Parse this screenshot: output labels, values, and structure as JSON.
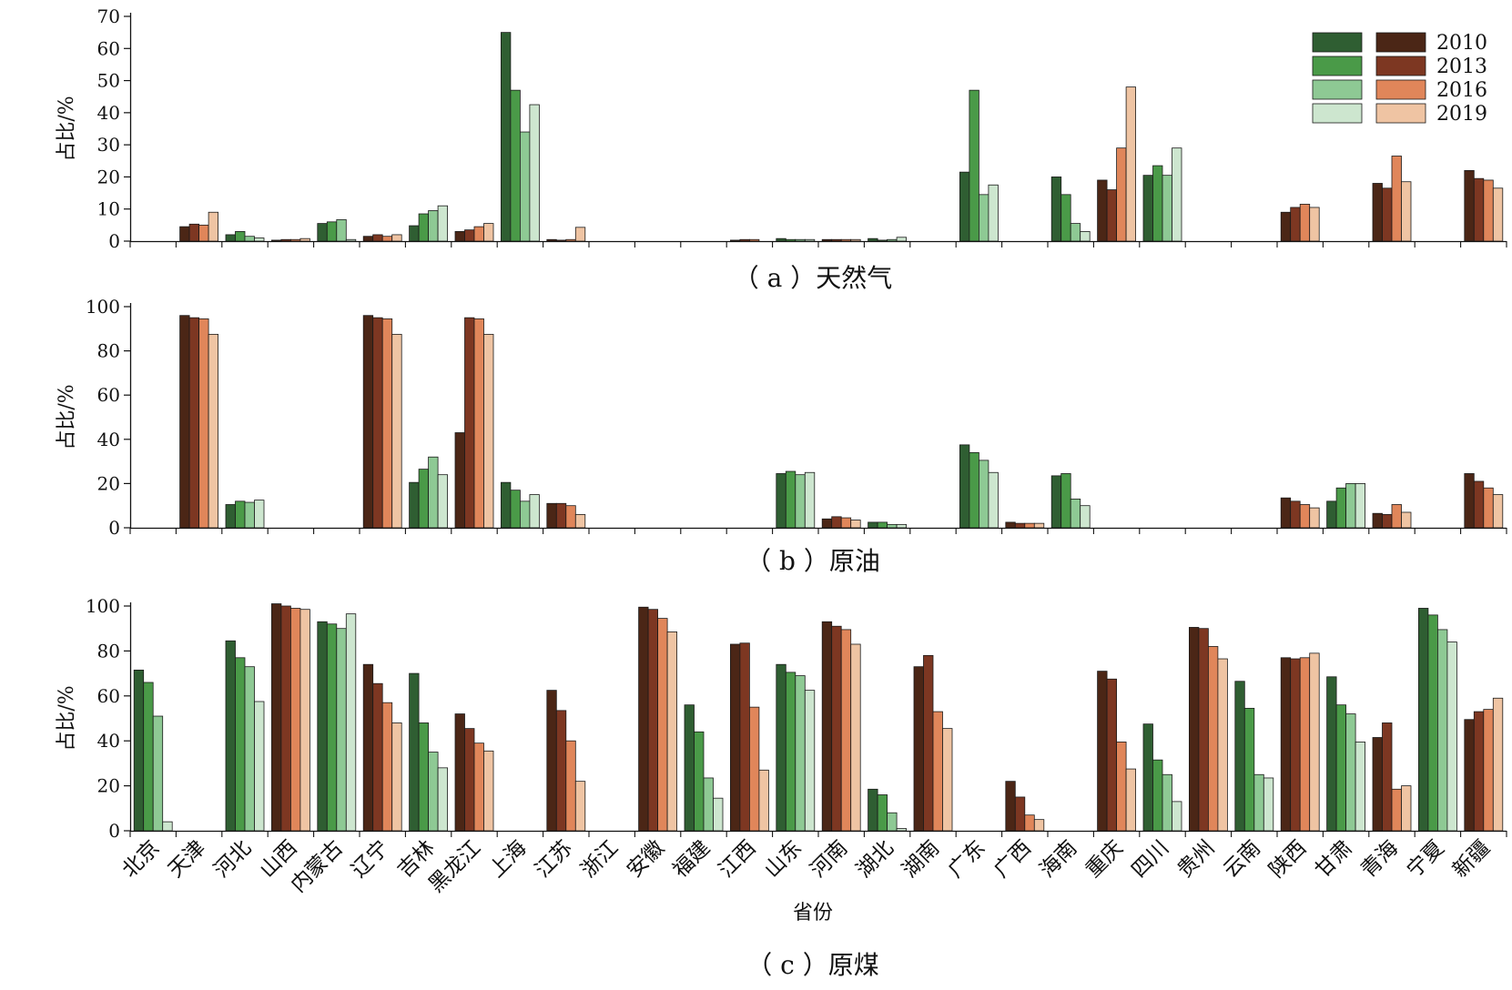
{
  "provinces": [
    "北京",
    "天津",
    "河北",
    "山西",
    "内蒙古",
    "辽宁",
    "吉林",
    "黑龙江",
    "上海",
    "江苏",
    "浙江",
    "安徽",
    "福建",
    "江西",
    "山东",
    "河南",
    "湖北",
    "湖南",
    "广东",
    "广西",
    "海南",
    "重庆",
    "四川",
    "贵州",
    "云南",
    "陕西",
    "甘肃",
    "青海",
    "宁夏",
    "新疆"
  ],
  "xlabel": "省份",
  "legend": {
    "years": [
      "2010",
      "2013",
      "2016",
      "2019"
    ],
    "green": [
      "#2f5e32",
      "#4a9a48",
      "#8ec994",
      "#cde6cf"
    ],
    "brown": [
      "#4b2616",
      "#7d3722",
      "#e0865a",
      "#efc4a3"
    ]
  },
  "chart_data": [
    {
      "type": "bar",
      "caption": "（ a ）天然气",
      "ylabel": "占比/%",
      "ylim": [
        0,
        70
      ],
      "yticks": [
        0,
        10,
        20,
        30,
        40,
        50,
        60,
        70
      ],
      "categories": [
        "北京",
        "天津",
        "河北",
        "山西",
        "内蒙古",
        "辽宁",
        "吉林",
        "黑龙江",
        "上海",
        "江苏",
        "浙江",
        "安徽",
        "福建",
        "江西",
        "山东",
        "河南",
        "湖北",
        "湖南",
        "广东",
        "广西",
        "海南",
        "重庆",
        "四川",
        "贵州",
        "云南",
        "陕西",
        "甘肃",
        "青海",
        "宁夏",
        "新疆"
      ],
      "palette": [
        "b",
        "b",
        "g",
        "b",
        "g",
        "b",
        "g",
        "b",
        "g",
        "b",
        "g",
        "b",
        "g",
        "b",
        "g",
        "b",
        "g",
        "b",
        "g",
        "b",
        "g",
        "b",
        "g",
        "b",
        "g",
        "b",
        "g",
        "b",
        "g",
        "b"
      ],
      "series": [
        {
          "name": "2010",
          "values": [
            0,
            4.5,
            2,
            0.3,
            5.5,
            1.5,
            4.8,
            3,
            65,
            0.5,
            0,
            0,
            0,
            0.3,
            0.8,
            0.5,
            0.8,
            0,
            21.5,
            0,
            20,
            19,
            20.5,
            0,
            0,
            9,
            0,
            18,
            0,
            22
          ]
        },
        {
          "name": "2013",
          "values": [
            0,
            5.3,
            3,
            0.5,
            6,
            2,
            8.5,
            3.5,
            47,
            0.3,
            0,
            0,
            0,
            0.5,
            0.5,
            0.5,
            0.3,
            0,
            47,
            0,
            14.5,
            16,
            23.5,
            0,
            0,
            10.5,
            0,
            16.5,
            0,
            19.5
          ]
        },
        {
          "name": "2016",
          "values": [
            0,
            5,
            1.5,
            0.5,
            6.7,
            1.5,
            9.5,
            4.5,
            34,
            0.5,
            0,
            0,
            0,
            0.5,
            0.5,
            0.5,
            0.5,
            0,
            14.5,
            0,
            5.5,
            29,
            20.5,
            0,
            0,
            11.5,
            0,
            26.5,
            0,
            19
          ]
        },
        {
          "name": "2019",
          "values": [
            0,
            9,
            1,
            0.8,
            0.5,
            2,
            11,
            5.5,
            42.5,
            4.3,
            0,
            0,
            0,
            0,
            0.5,
            0.5,
            1.2,
            0,
            17.5,
            0,
            3,
            48,
            29,
            0,
            0,
            10.5,
            0,
            18.5,
            0,
            16.5
          ]
        }
      ]
    },
    {
      "type": "bar",
      "caption": "（ b ）原油",
      "ylabel": "占比/%",
      "ylim": [
        0,
        100
      ],
      "yticks": [
        0,
        20,
        40,
        60,
        80,
        100
      ],
      "categories": [
        "北京",
        "天津",
        "河北",
        "山西",
        "内蒙古",
        "辽宁",
        "吉林",
        "黑龙江",
        "上海",
        "江苏",
        "浙江",
        "安徽",
        "福建",
        "江西",
        "山东",
        "河南",
        "湖北",
        "湖南",
        "广东",
        "广西",
        "海南",
        "重庆",
        "四川",
        "贵州",
        "云南",
        "陕西",
        "甘肃",
        "青海",
        "宁夏",
        "新疆"
      ],
      "palette": [
        "b",
        "b",
        "g",
        "b",
        "g",
        "b",
        "g",
        "b",
        "g",
        "b",
        "g",
        "b",
        "g",
        "b",
        "g",
        "b",
        "g",
        "b",
        "g",
        "b",
        "g",
        "b",
        "g",
        "b",
        "g",
        "b",
        "g",
        "b",
        "g",
        "b"
      ],
      "series": [
        {
          "name": "2010",
          "values": [
            0,
            96,
            10.5,
            0,
            0,
            96,
            20.5,
            43,
            20.5,
            11,
            0,
            0,
            0,
            0,
            24.5,
            4,
            2.5,
            0,
            37.5,
            2.5,
            23.5,
            0,
            0,
            0,
            0,
            13.5,
            12,
            6.5,
            0,
            24.5
          ]
        },
        {
          "name": "2013",
          "values": [
            0,
            95,
            12,
            0,
            0,
            95,
            26.5,
            95,
            17,
            11,
            0,
            0,
            0,
            0,
            25.5,
            5,
            2.5,
            0,
            34,
            2,
            24.5,
            0,
            0,
            0,
            0,
            12,
            18,
            6,
            0,
            21
          ]
        },
        {
          "name": "2016",
          "values": [
            0,
            94.5,
            11.5,
            0,
            0,
            94.5,
            32,
            94.5,
            12,
            10,
            0,
            0,
            0,
            0,
            24,
            4.5,
            1.5,
            0,
            30.5,
            2,
            13,
            0,
            0,
            0,
            0,
            10.5,
            20,
            10.5,
            0,
            18
          ]
        },
        {
          "name": "2019",
          "values": [
            0,
            87.5,
            12.5,
            0,
            0,
            87.5,
            24,
            87.5,
            15,
            6,
            0,
            0,
            0,
            0,
            25,
            3.5,
            1.5,
            0,
            25,
            2,
            10,
            0,
            0,
            0,
            0,
            9,
            20,
            7,
            0,
            15
          ]
        }
      ]
    },
    {
      "type": "bar",
      "caption": "（ c ）原煤",
      "ylabel": "占比/%",
      "ylim": [
        0,
        100
      ],
      "yticks": [
        0,
        20,
        40,
        60,
        80,
        100
      ],
      "categories": [
        "北京",
        "天津",
        "河北",
        "山西",
        "内蒙古",
        "辽宁",
        "吉林",
        "黑龙江",
        "上海",
        "江苏",
        "浙江",
        "安徽",
        "福建",
        "江西",
        "山东",
        "河南",
        "湖北",
        "湖南",
        "广东",
        "广西",
        "海南",
        "重庆",
        "四川",
        "贵州",
        "云南",
        "陕西",
        "甘肃",
        "青海",
        "宁夏",
        "新疆"
      ],
      "palette": [
        "g",
        "b",
        "g",
        "b",
        "g",
        "b",
        "g",
        "b",
        "g",
        "b",
        "g",
        "b",
        "g",
        "b",
        "g",
        "b",
        "g",
        "b",
        "g",
        "b",
        "g",
        "b",
        "g",
        "b",
        "g",
        "b",
        "g",
        "b",
        "g",
        "b"
      ],
      "series": [
        {
          "name": "2010",
          "values": [
            71.5,
            0,
            84.5,
            101,
            93,
            74,
            70,
            52,
            0,
            62.5,
            0,
            99.5,
            56,
            83,
            74,
            93,
            18.5,
            73,
            0,
            22,
            0,
            71,
            47.5,
            90.5,
            66.5,
            77,
            68.5,
            41.5,
            99,
            49.5
          ]
        },
        {
          "name": "2013",
          "values": [
            66,
            0,
            77,
            100,
            92,
            65.5,
            48,
            45.5,
            0,
            53.5,
            0,
            98.5,
            44,
            83.5,
            70.5,
            91,
            16,
            78,
            0,
            15,
            0,
            67.5,
            31.5,
            90,
            54.5,
            76.5,
            56,
            48,
            96,
            53
          ]
        },
        {
          "name": "2016",
          "values": [
            51,
            0,
            73,
            99,
            90,
            57,
            35,
            39,
            0,
            40,
            0,
            94.5,
            23.5,
            55,
            69,
            89.5,
            8,
            53,
            0,
            7,
            0,
            39.5,
            25,
            82,
            25,
            77,
            52,
            18.5,
            89.5,
            54
          ]
        },
        {
          "name": "2019",
          "values": [
            4,
            0,
            57.5,
            98.5,
            96.5,
            48,
            28,
            35.5,
            0,
            22,
            0,
            88.5,
            14.5,
            27,
            62.5,
            83,
            1,
            45.5,
            0,
            5,
            0,
            27.5,
            13,
            76.5,
            23.5,
            79,
            39.5,
            20,
            84,
            59
          ]
        }
      ]
    }
  ]
}
